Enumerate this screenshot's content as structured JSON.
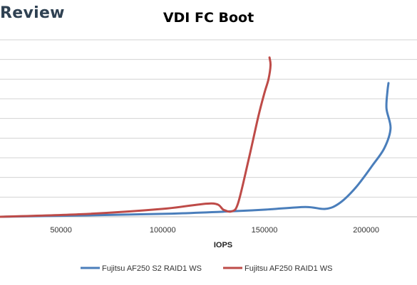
{
  "brand": "Review",
  "chart_data": {
    "type": "line",
    "title": "VDI FC Boot",
    "xlabel": "IOPS",
    "ylabel": "",
    "xlim": [
      20000,
      225000
    ],
    "ylim": [
      0,
      9
    ],
    "x_ticks": [
      50000,
      100000,
      150000,
      200000
    ],
    "x_tick_labels": [
      "50000",
      "100000",
      "150000",
      "200000"
    ],
    "grid": "horizontal",
    "legend": "bottom",
    "series": [
      {
        "name": "Fujitsu AF250 S2 RAID1 WS",
        "color": "#4a7ebb",
        "x": [
          20000,
          60000,
          100000,
          130000,
          150000,
          170000,
          180000,
          187000,
          195000,
          203000,
          209000,
          212000,
          210000,
          210500,
          211000
        ],
        "y": [
          0.0,
          0.07,
          0.15,
          0.26,
          0.36,
          0.5,
          0.4,
          0.7,
          1.5,
          2.6,
          3.5,
          4.5,
          5.5,
          6.4,
          6.8
        ]
      },
      {
        "name": "Fujitsu AF250 RAID1 WS",
        "color": "#be4b48",
        "x": [
          20000,
          60000,
          100000,
          124000,
          130000,
          134000,
          137000,
          142000,
          147000,
          150000,
          152000,
          153000,
          152500
        ],
        "y": [
          0.0,
          0.13,
          0.4,
          0.68,
          0.35,
          0.28,
          0.68,
          2.8,
          5.1,
          6.3,
          7.0,
          7.7,
          8.1
        ]
      }
    ]
  }
}
